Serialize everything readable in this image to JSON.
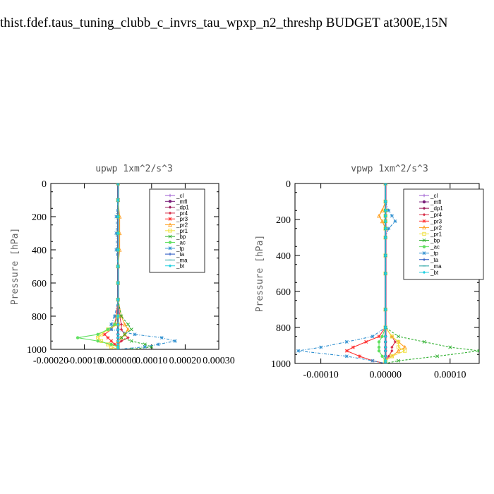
{
  "title": "thist.fdef.taus_tuning_clubb_c_invrs_tau_wpxp_n2_threshp  BUDGET at300E,15N",
  "legend_colors": {
    "_cl": "#9b59d0",
    "_mfl": "#7a1f7a",
    "_dp1": "#9b1b5a",
    "_pr4": "#d8304a",
    "_pr3": "#ff3030",
    "_pr2": "#ffa020",
    "_pr1": "#f0e040",
    "_bp": "#30b030",
    "_ac": "#60e060",
    "_tp": "#3090d0",
    "_ta": "#2050c0",
    "_ma": "#20a0a0",
    "_bt": "#20d0e0"
  },
  "chart_data": [
    {
      "type": "line",
      "title": "upwp   1xm^2/s^3",
      "ylabel": "Pressure [hPa]",
      "xlabel": "",
      "xlim": [
        -0.0002,
        0.0003
      ],
      "ylim": [
        1000,
        0
      ],
      "xticks": [
        -0.0002,
        -0.0001,
        0.0,
        0.0001,
        0.0002,
        0.0003
      ],
      "xtick_labels": [
        "-0.00020",
        "-0.00010",
        "0.000000",
        "0.00010",
        "0.00020",
        "0.00030"
      ],
      "yticks": [
        0,
        200,
        400,
        600,
        800,
        1000
      ],
      "ytick_labels": [
        "0",
        "200",
        "400",
        "600",
        "800",
        "1000"
      ],
      "legend_placement": "top-right",
      "y": [
        0,
        100,
        200,
        300,
        400,
        500,
        600,
        700,
        800,
        850,
        880,
        910,
        930,
        950,
        970,
        985,
        1000
      ],
      "series": [
        {
          "name": "_cl",
          "values": [
            0,
            0,
            0,
            0,
            0,
            0,
            0,
            0,
            0,
            0,
            0,
            0,
            0,
            0,
            0,
            0,
            0
          ]
        },
        {
          "name": "_mfl",
          "values": [
            0,
            0,
            0,
            0,
            0,
            0,
            0,
            0,
            0,
            0,
            0,
            0,
            0,
            0,
            0,
            0,
            0
          ]
        },
        {
          "name": "_dp1",
          "values": [
            0,
            0,
            0,
            0,
            0,
            0,
            0,
            0,
            0,
            0,
            0,
            0,
            0,
            0,
            0,
            0,
            0
          ]
        },
        {
          "name": "_pr4",
          "values": [
            0,
            0,
            0,
            0,
            0,
            0,
            0,
            0,
            5e-06,
            1e-05,
            1e-05,
            2e-05,
            3e-05,
            1e-05,
            0,
            0,
            0
          ]
        },
        {
          "name": "_pr3",
          "values": [
            0,
            0,
            0,
            0,
            0,
            0,
            0,
            0,
            -5e-06,
            -1e-05,
            -2e-05,
            -4e-05,
            -3e-05,
            -2e-05,
            -1e-05,
            0,
            0
          ]
        },
        {
          "name": "_pr2",
          "values": [
            0,
            0,
            5e-06,
            5e-06,
            5e-06,
            0,
            0,
            0,
            1e-05,
            2e-05,
            3e-05,
            2e-05,
            1e-05,
            0,
            0,
            0,
            0
          ]
        },
        {
          "name": "_pr1",
          "values": [
            0,
            0,
            0,
            0,
            0,
            0,
            0,
            0,
            0,
            0,
            -3e-05,
            -5e-05,
            -6e-05,
            -5e-05,
            -3e-05,
            -2e-05,
            0
          ]
        },
        {
          "name": "_bp",
          "values": [
            0,
            0,
            0,
            0,
            0,
            0,
            0,
            0,
            1e-05,
            3e-05,
            4e-05,
            2e-05,
            1e-05,
            4e-05,
            8e-05,
            0.0001,
            4e-05
          ]
        },
        {
          "name": "_ac",
          "values": [
            0,
            0,
            0,
            0,
            0,
            0,
            0,
            0,
            0,
            -1e-05,
            -3e-05,
            -6e-05,
            -0.00012,
            -6e-05,
            -2e-05,
            0,
            0
          ]
        },
        {
          "name": "_tp",
          "values": [
            0,
            0,
            -5e-06,
            -5e-06,
            -5e-06,
            0,
            0,
            0,
            -1e-05,
            -2e-05,
            -2e-05,
            5e-05,
            0.00013,
            0.00017,
            0.00012,
            8e-05,
            0
          ]
        },
        {
          "name": "_ta",
          "values": [
            0,
            0,
            0,
            0,
            0,
            0,
            0,
            0,
            0,
            0,
            0,
            0,
            0,
            0,
            0,
            0,
            0
          ]
        },
        {
          "name": "_ma",
          "values": [
            0,
            0,
            0,
            0,
            0,
            0,
            0,
            0,
            0,
            0,
            0,
            0,
            0,
            0,
            0,
            0,
            0
          ]
        },
        {
          "name": "_bt",
          "values": [
            0,
            0,
            0,
            0,
            0,
            0,
            0,
            0,
            0,
            0,
            0,
            0,
            0,
            0,
            0,
            0,
            0
          ]
        }
      ]
    },
    {
      "type": "line",
      "title": "vpwp   1xm^2/s^3",
      "ylabel": "Pressure [hPa]",
      "xlabel": "",
      "xlim": [
        -0.00014,
        0.000145
      ],
      "ylim": [
        1000,
        0
      ],
      "xticks": [
        -0.0001,
        0.0,
        0.0001
      ],
      "xtick_labels": [
        "-0.00010",
        "0.00000",
        "0.00010"
      ],
      "yticks": [
        0,
        200,
        400,
        600,
        800,
        1000
      ],
      "ytick_labels": [
        "0",
        "200",
        "400",
        "600",
        "800",
        "1000"
      ],
      "legend_placement": "top-right",
      "y": [
        0,
        100,
        150,
        180,
        210,
        250,
        300,
        400,
        500,
        700,
        800,
        850,
        880,
        910,
        930,
        960,
        985,
        1000
      ],
      "series": [
        {
          "name": "_cl",
          "values": [
            0,
            0,
            0,
            0,
            0,
            0,
            0,
            0,
            0,
            0,
            0,
            0,
            0,
            0,
            0,
            0,
            0,
            0
          ]
        },
        {
          "name": "_mfl",
          "values": [
            0,
            0,
            0,
            0,
            0,
            0,
            0,
            0,
            0,
            0,
            0,
            0,
            0,
            0,
            0,
            0,
            0,
            0
          ]
        },
        {
          "name": "_dp1",
          "values": [
            0,
            0,
            0,
            0,
            0,
            0,
            0,
            0,
            0,
            0,
            0,
            0,
            0,
            0,
            0,
            0,
            0,
            0
          ]
        },
        {
          "name": "_pr4",
          "values": [
            0,
            0,
            0,
            0,
            0,
            0,
            0,
            0,
            0,
            0,
            0,
            1e-05,
            1.5e-05,
            1e-05,
            1e-05,
            5e-06,
            0,
            0
          ]
        },
        {
          "name": "_pr3",
          "values": [
            0,
            0,
            0,
            0,
            0,
            0,
            0,
            0,
            0,
            0,
            0,
            -1e-05,
            -3e-05,
            -5e-05,
            -6e-05,
            -4e-05,
            -2e-05,
            0
          ]
        },
        {
          "name": "_pr2",
          "values": [
            0,
            0,
            -5e-06,
            -1e-05,
            -5e-06,
            0,
            0,
            0,
            0,
            0,
            0,
            1e-05,
            2e-05,
            3e-05,
            2e-05,
            1e-05,
            0,
            0
          ]
        },
        {
          "name": "_pr1",
          "values": [
            0,
            0,
            0,
            0,
            0,
            0,
            0,
            0,
            0,
            0,
            0,
            1e-05,
            2e-05,
            2e-05,
            3e-05,
            1e-05,
            0,
            0
          ]
        },
        {
          "name": "_bp",
          "values": [
            0,
            0,
            0,
            0,
            0,
            0,
            0,
            0,
            0,
            0,
            0,
            2e-05,
            6e-05,
            0.0001,
            0.000145,
            8e-05,
            2e-05,
            0
          ]
        },
        {
          "name": "_ac",
          "values": [
            0,
            0,
            0,
            0,
            0,
            0,
            0,
            0,
            0,
            0,
            0,
            -5e-06,
            -1e-05,
            -1e-05,
            -1e-05,
            -5e-06,
            0,
            0
          ]
        },
        {
          "name": "_tp",
          "values": [
            0,
            0,
            5e-06,
            1e-05,
            1.5e-05,
            5e-06,
            0,
            0,
            0,
            0,
            0,
            -2e-05,
            -6e-05,
            -0.0001,
            -0.000135,
            -6e-05,
            -2e-05,
            0
          ]
        },
        {
          "name": "_ta",
          "values": [
            0,
            0,
            0,
            0,
            0,
            0,
            0,
            0,
            0,
            0,
            0,
            0,
            0,
            0,
            0,
            0,
            0,
            0
          ]
        },
        {
          "name": "_ma",
          "values": [
            0,
            0,
            0,
            0,
            0,
            0,
            0,
            0,
            0,
            0,
            0,
            0,
            0,
            0,
            0,
            0,
            0,
            0
          ]
        },
        {
          "name": "_bt",
          "values": [
            0,
            0,
            0,
            0,
            0,
            0,
            0,
            0,
            0,
            0,
            0,
            0,
            0,
            0,
            0,
            0,
            0,
            0
          ]
        }
      ]
    }
  ]
}
